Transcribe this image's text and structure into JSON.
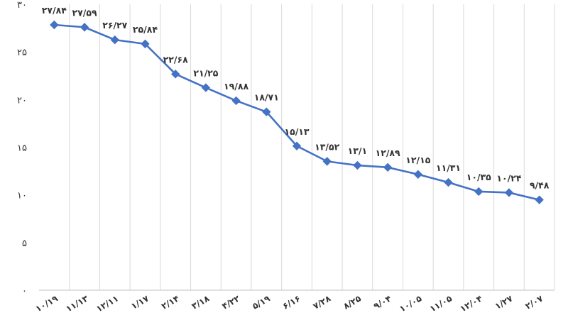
{
  "chart_data": {
    "type": "line",
    "grid": "vertical",
    "ylim": [
      0,
      30
    ],
    "yticks": [
      0,
      5,
      10,
      15,
      20,
      25,
      30
    ],
    "ytick_labels": [
      "۰",
      "۵",
      "۱۰",
      "۱۵",
      "۲۰",
      "۲۵",
      "۳۰"
    ],
    "x_labels": [
      "۱۰/۱۹",
      "۱۱/۱۳",
      "۱۲/۱۱",
      "۱/۱۷",
      "۲/۱۴",
      "۳/۱۸",
      "۴/۲۲",
      "۵/۱۹",
      "۶/۱۶",
      "۷/۲۸",
      "۸/۲۵",
      "۹/۰۴",
      "۱۰/۰۵",
      "۱۱/۰۵",
      "۱۲/۰۴",
      "۱/۲۷",
      "۲/۰۷"
    ],
    "series": [
      {
        "color": "#4472C4",
        "marker": "diamond",
        "values": [
          27.84,
          27.59,
          26.27,
          25.84,
          22.68,
          21.25,
          19.88,
          18.71,
          15.13,
          13.52,
          13.1,
          12.89,
          12.15,
          11.31,
          10.35,
          10.24,
          9.48
        ],
        "labels": [
          "۲۷/۸۴",
          "۲۷/۵۹",
          "۲۶/۲۷",
          "۲۵/۸۴",
          "۲۲/۶۸",
          "۲۱/۲۵",
          "۱۹/۸۸",
          "۱۸/۷۱",
          "۱۵/۱۳",
          "۱۳/۵۲",
          "۱۳/۱",
          "۱۲/۸۹",
          "۱۲/۱۵",
          "۱۱/۳۱",
          "۱۰/۳۵",
          "۱۰/۲۴",
          "۹/۴۸"
        ]
      }
    ]
  }
}
